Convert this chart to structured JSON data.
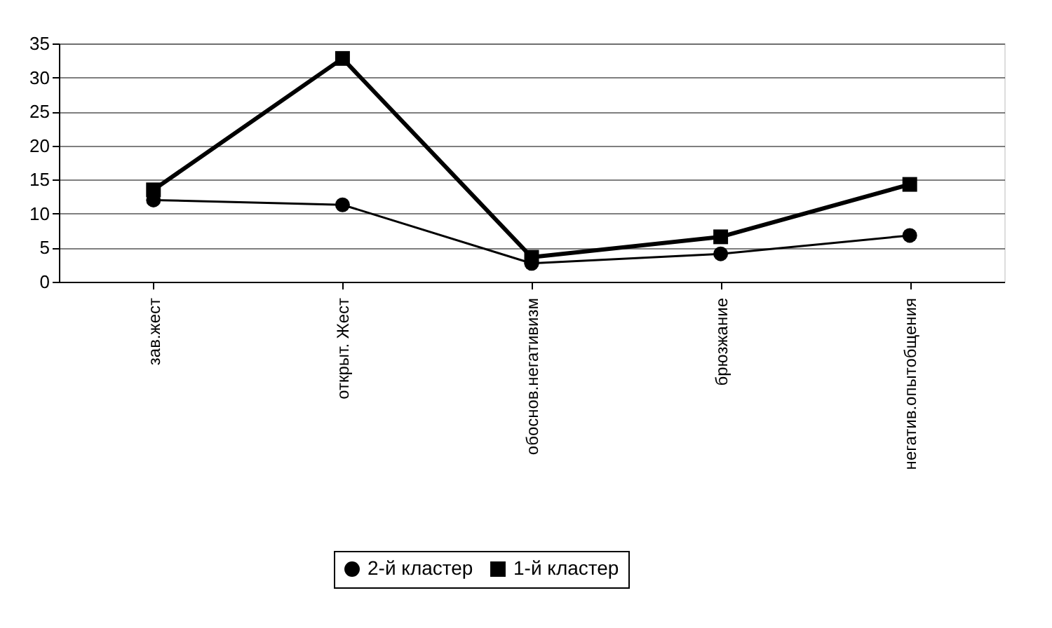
{
  "chart_data": {
    "type": "line",
    "categories": [
      "зав.жест",
      "открыт. Жест",
      "обоснов.негативизм",
      "брюзжание",
      "негатив.опытобщения"
    ],
    "series": [
      {
        "name": "2-й кластер",
        "color": "#000000",
        "marker": "circle",
        "values": [
          12,
          11.3,
          2.7,
          4.1,
          6.8
        ]
      },
      {
        "name": "1-й кластер",
        "color": "#000000",
        "marker": "square",
        "values": [
          13.5,
          32.8,
          3.6,
          6.6,
          14.3
        ]
      }
    ],
    "ylim": [
      0,
      35
    ],
    "yticks": [
      0,
      5,
      10,
      15,
      20,
      25,
      30,
      35
    ],
    "grid": "y",
    "legend": "bottom",
    "line_style": "solid"
  }
}
